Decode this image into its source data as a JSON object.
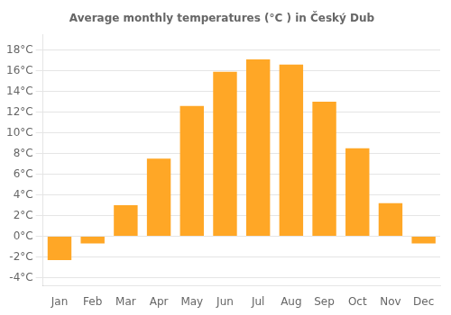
{
  "chart_data": {
    "type": "bar",
    "title": "Average monthly temperatures (°C ) in Český Dub",
    "categories": [
      "Jan",
      "Feb",
      "Mar",
      "Apr",
      "May",
      "Jun",
      "Jul",
      "Aug",
      "Sep",
      "Oct",
      "Nov",
      "Dec"
    ],
    "values": [
      -2.3,
      -0.7,
      3.0,
      7.5,
      12.6,
      15.9,
      17.1,
      16.6,
      13.0,
      8.5,
      3.2,
      -0.7
    ],
    "color": "#FFA726",
    "ylim": [
      -4.8,
      19.5
    ],
    "yticks": [
      {
        "value": -4,
        "label": "-4°C"
      },
      {
        "value": -2,
        "label": "-2°C"
      },
      {
        "value": 0,
        "label": "0°C"
      },
      {
        "value": 2,
        "label": "2°C"
      },
      {
        "value": 4,
        "label": "4°C"
      },
      {
        "value": 6,
        "label": "6°C"
      },
      {
        "value": 8,
        "label": "8°C"
      },
      {
        "value": 10,
        "label": "10°C"
      },
      {
        "value": 12,
        "label": "12°C"
      },
      {
        "value": 14,
        "label": "14°C"
      },
      {
        "value": 16,
        "label": "16°C"
      },
      {
        "value": 18,
        "label": "18°C"
      }
    ],
    "grid": true
  }
}
